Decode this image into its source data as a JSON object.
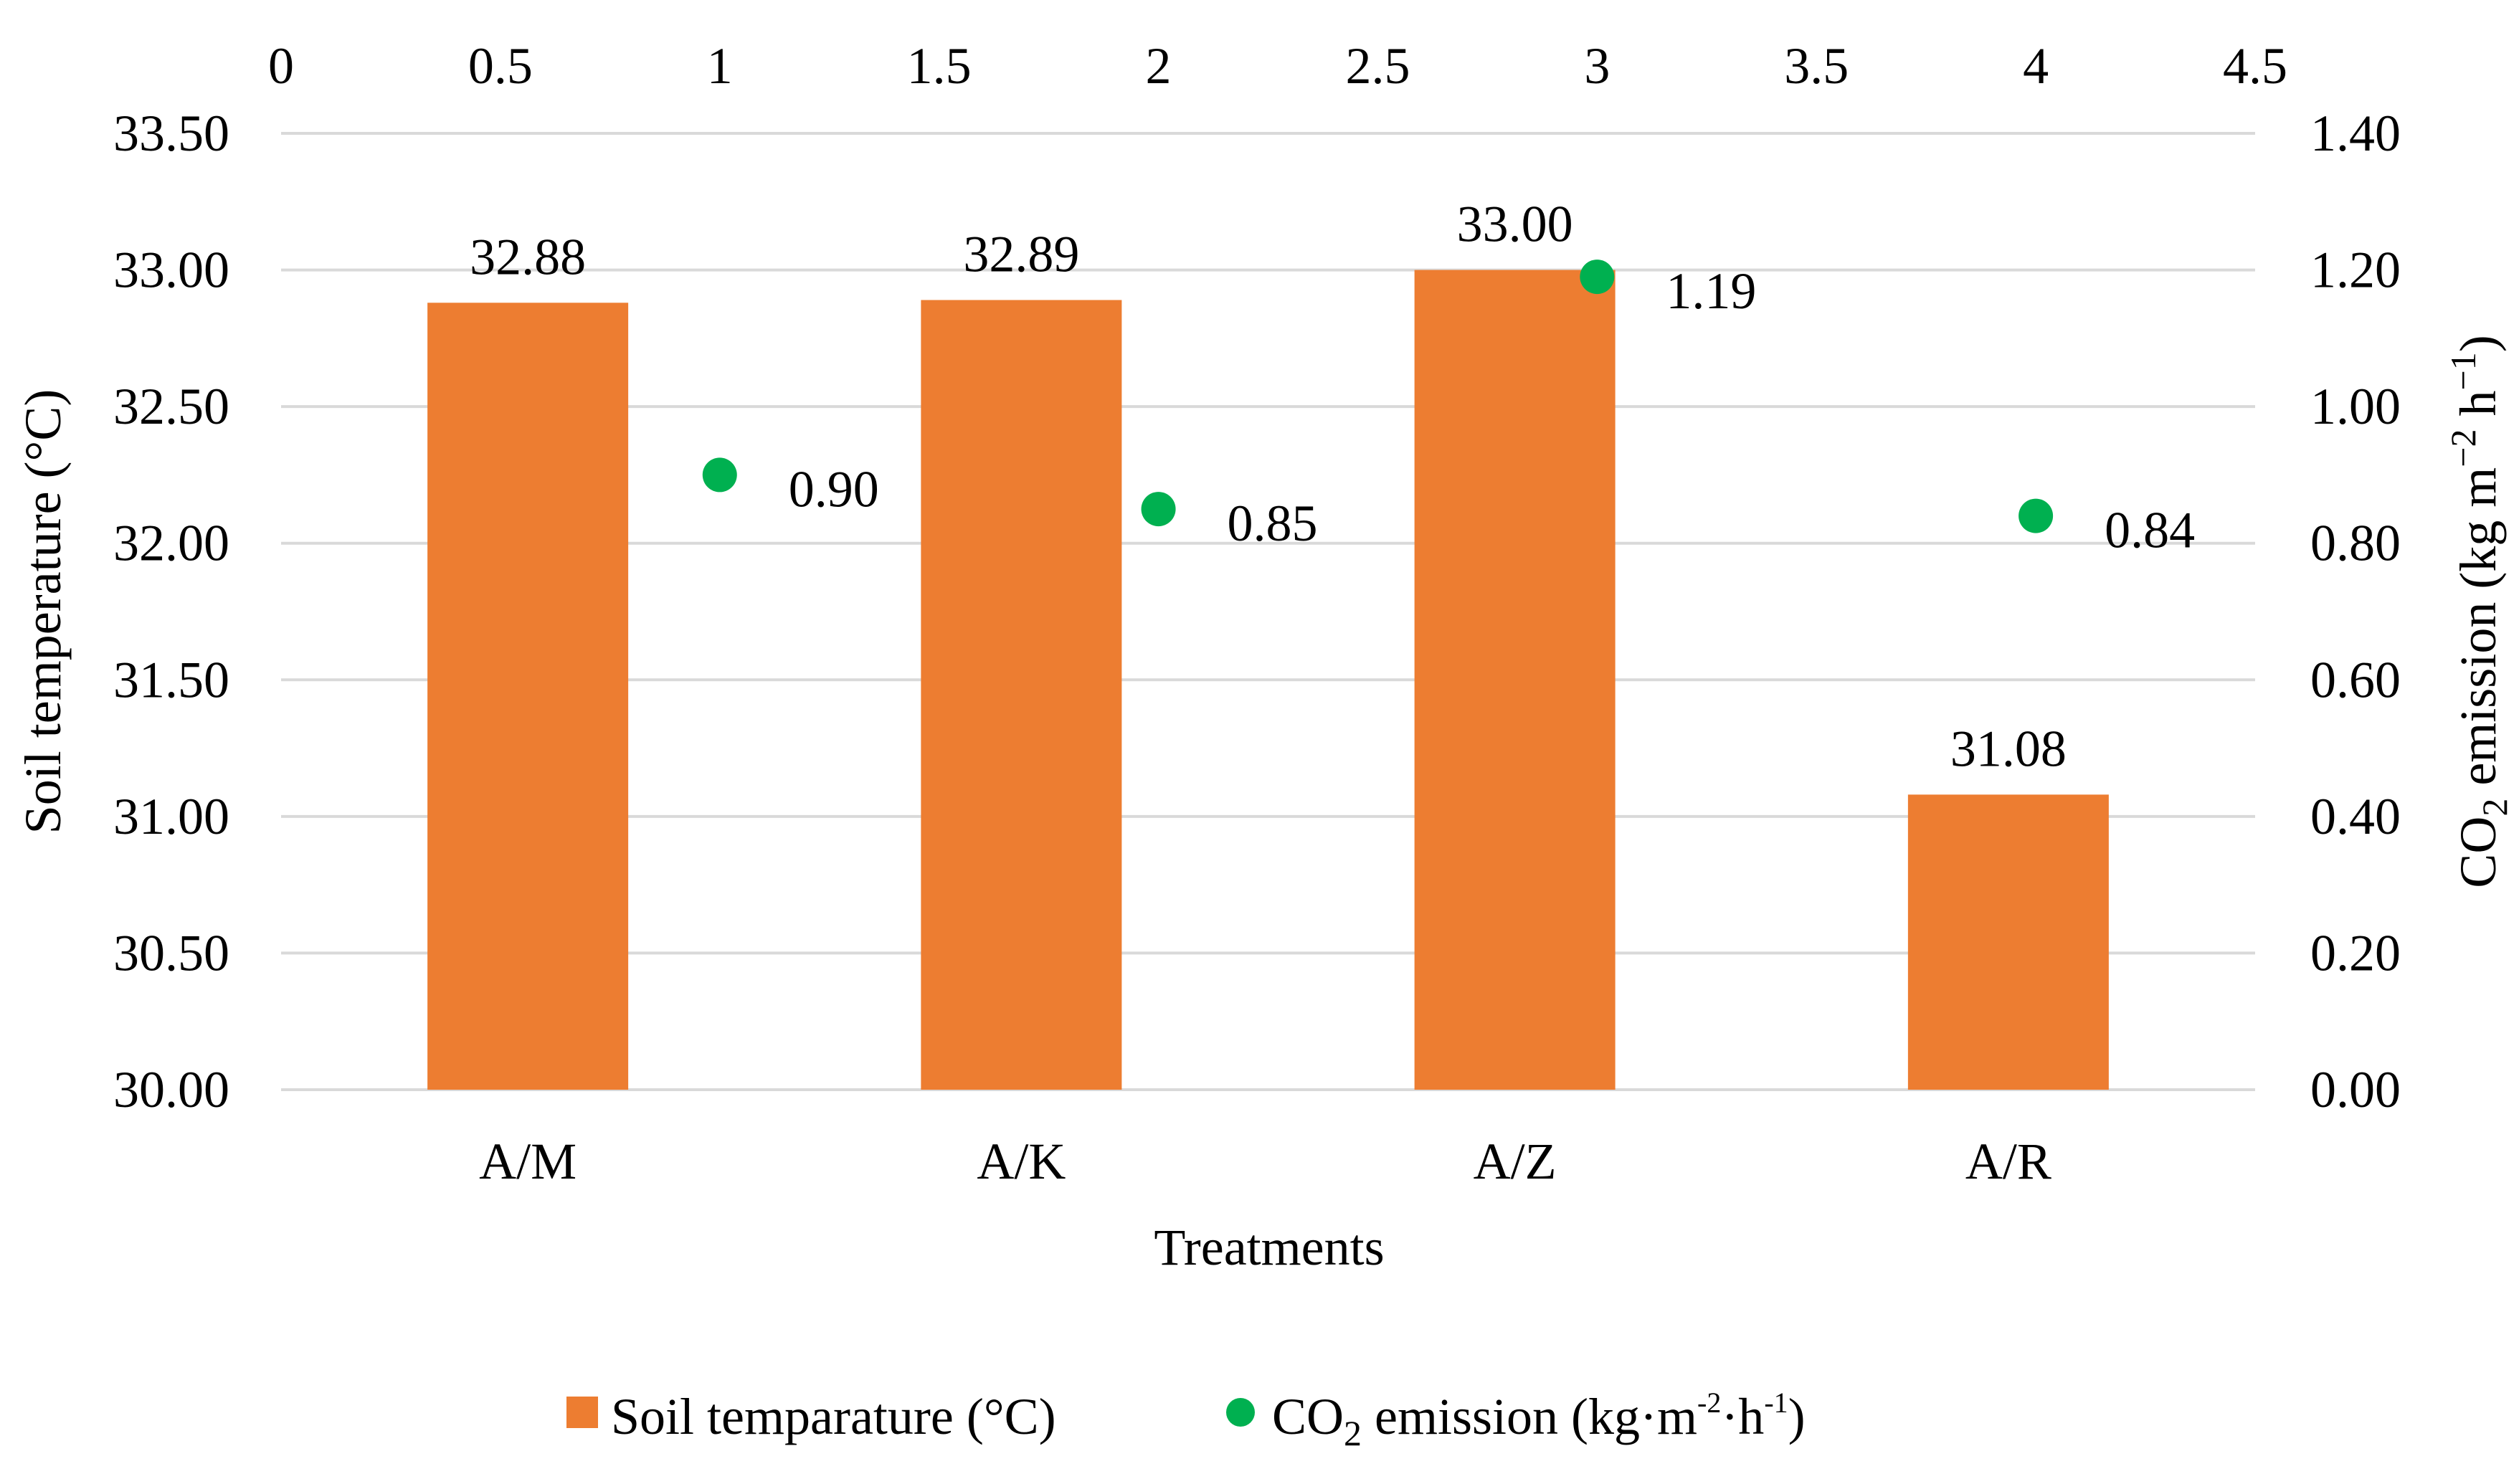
{
  "chart_data": {
    "type": "bar",
    "title": "",
    "categories": [
      "A/M",
      "A/K",
      "A/Z",
      "A/R"
    ],
    "series": [
      {
        "name": "Soil temparature (°C)",
        "kind": "bar",
        "axis": "left",
        "color": "#ED7D31",
        "values": [
          32.88,
          32.89,
          33.0,
          31.08
        ],
        "labels": [
          "32.88",
          "32.89",
          "33.00",
          "31.08"
        ]
      },
      {
        "name": "CO2 emission (kg·m-2·h-1)",
        "kind": "scatter",
        "axis": "right",
        "color": "#00B050",
        "x": [
          1,
          2,
          3,
          4
        ],
        "y": [
          0.9,
          0.85,
          1.19,
          0.84
        ],
        "labels": [
          "0.90",
          "0.85",
          "1.19",
          "0.84"
        ]
      }
    ],
    "xlabel": "Treatments",
    "ylabel_left": "Soil temperature (°C)",
    "ylabel_right": {
      "pre": "CO",
      "sub": "2",
      "mid": " emission (kg m",
      "sup1": "−2",
      "mid2": " h",
      "sup2": "−1",
      "post": ")"
    },
    "y_left": {
      "min": 30.0,
      "max": 33.5,
      "ticks": [
        "30.00",
        "30.50",
        "31.00",
        "31.50",
        "32.00",
        "32.50",
        "33.00",
        "33.50"
      ]
    },
    "y_right": {
      "min": 0.0,
      "max": 1.4,
      "ticks": [
        "0.00",
        "0.20",
        "0.40",
        "0.60",
        "0.80",
        "1.00",
        "1.20",
        "1.40"
      ]
    },
    "x_top": {
      "min": 0,
      "max": 4.5,
      "ticks": [
        "0",
        "0.5",
        "1",
        "1.5",
        "2",
        "2.5",
        "3",
        "3.5",
        "4",
        "4.5"
      ]
    },
    "grid": true,
    "legend": {
      "position": "bottom",
      "items": [
        {
          "type": "bar",
          "color": "#ED7D31",
          "text": "Soil temparature (°C)"
        },
        {
          "type": "dot",
          "color": "#00B050",
          "pre": "CO",
          "sub": "2",
          "mid": " emission  (kg·m",
          "sup1": "-2",
          "mid2": "·h",
          "sup2": "-1",
          "post": ")"
        }
      ]
    }
  }
}
